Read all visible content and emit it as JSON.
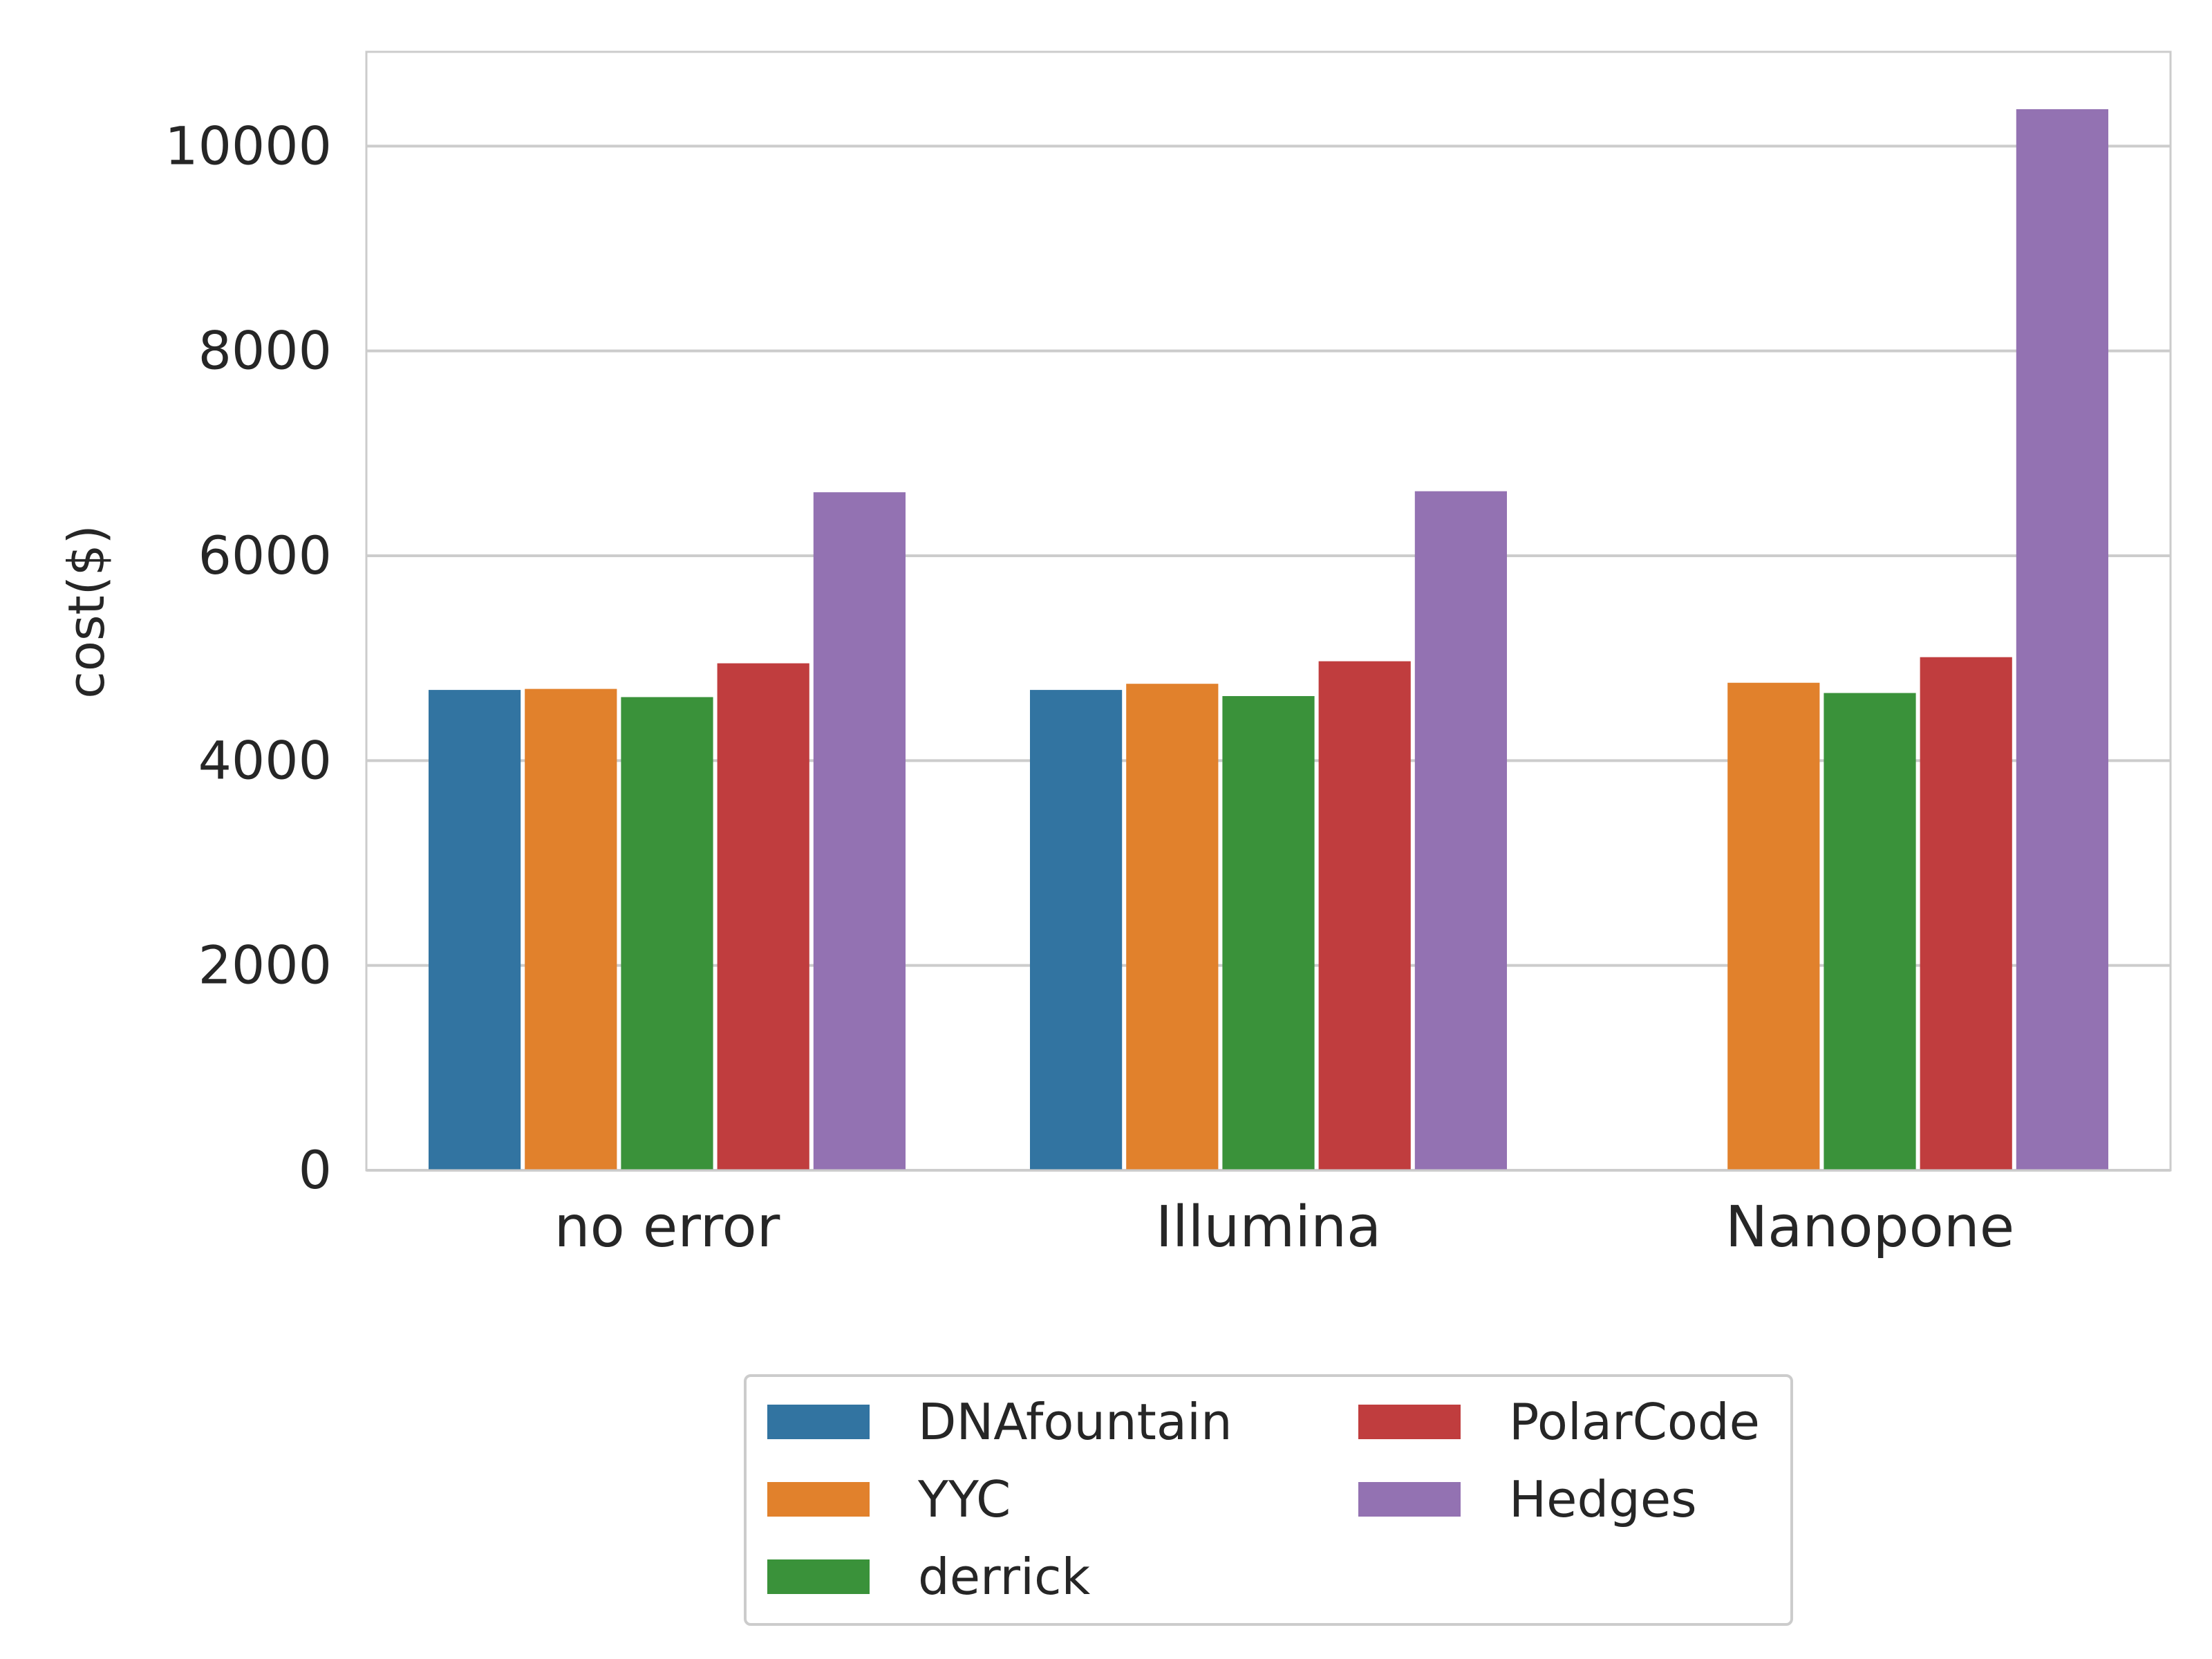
{
  "chart_data": {
    "type": "bar",
    "title": "",
    "xlabel": "",
    "ylabel": "cost($)",
    "categories": [
      "no error",
      "Illumina",
      "Nanopone"
    ],
    "series": [
      {
        "name": "DNAfountain",
        "color": "#3274a1",
        "values": [
          4690,
          4690,
          null
        ]
      },
      {
        "name": "YYC",
        "color": "#e1812c",
        "values": [
          4700,
          4750,
          4760
        ]
      },
      {
        "name": "derrick",
        "color": "#3a923a",
        "values": [
          4620,
          4630,
          4660
        ]
      },
      {
        "name": "PolarCode",
        "color": "#c03d3e",
        "values": [
          4950,
          4970,
          5010
        ]
      },
      {
        "name": "Hedges",
        "color": "#9372b2",
        "values": [
          6620,
          6630,
          10360
        ]
      }
    ],
    "ylim": [
      0,
      10920
    ],
    "yticks": [
      0,
      2000,
      4000,
      6000,
      8000,
      10000
    ],
    "grid": true,
    "legend_position": "bottom-center"
  }
}
